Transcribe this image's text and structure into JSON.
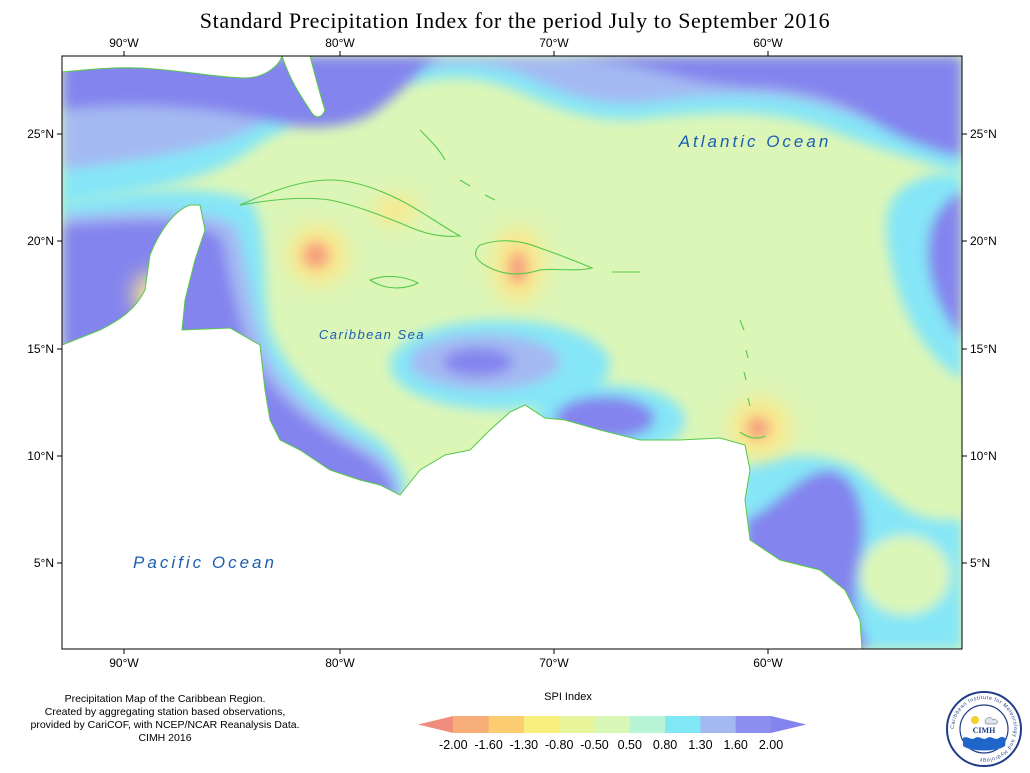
{
  "title": "Standard Precipitation Index for the period July to September 2016",
  "axes": {
    "lon_labels": [
      "90°W",
      "80°W",
      "70°W",
      "60°W"
    ],
    "lat_labels": [
      "25°N",
      "20°N",
      "15°N",
      "10°N",
      "5°N"
    ]
  },
  "labels": {
    "atlantic": "Atlantic Ocean",
    "caribbean": "Caribbean Sea",
    "pacific": "Pacific Ocean"
  },
  "credit": [
    "Precipitation Map of the Caribbean Region.",
    "Created by aggregating station based observations,",
    "provided by CariCOF, with NCEP/NCAR Reanalysis Data.",
    "CIMH 2016"
  ],
  "legend": {
    "title": "SPI Index",
    "breaks": [
      "-2.00",
      "-1.60",
      "-1.30",
      "-0.80",
      "-0.50",
      "0.50",
      "0.80",
      "1.30",
      "1.60",
      "2.00"
    ],
    "colors": [
      "#f08c7c",
      "#f7ae78",
      "#fbcd70",
      "#f9ef7e",
      "#e9f59b",
      "#d9f7b6",
      "#b7f5d6",
      "#7fe8f4",
      "#a4b9f2",
      "#8e8ef0",
      "#8484ee"
    ]
  },
  "logo": {
    "text": "CIMH",
    "ring_text": "Caribbean Institute for Meteorology and Hydrology"
  },
  "colors": {
    "land": "#ffffff",
    "coast": "#55c94a",
    "very_wet": "#7c7ceb",
    "wet": "#9aa7f0",
    "moist": "#85e6f7",
    "normal": "#dcf6b8",
    "dry": "#fbe78a",
    "very_dry": "#f5a07e"
  }
}
